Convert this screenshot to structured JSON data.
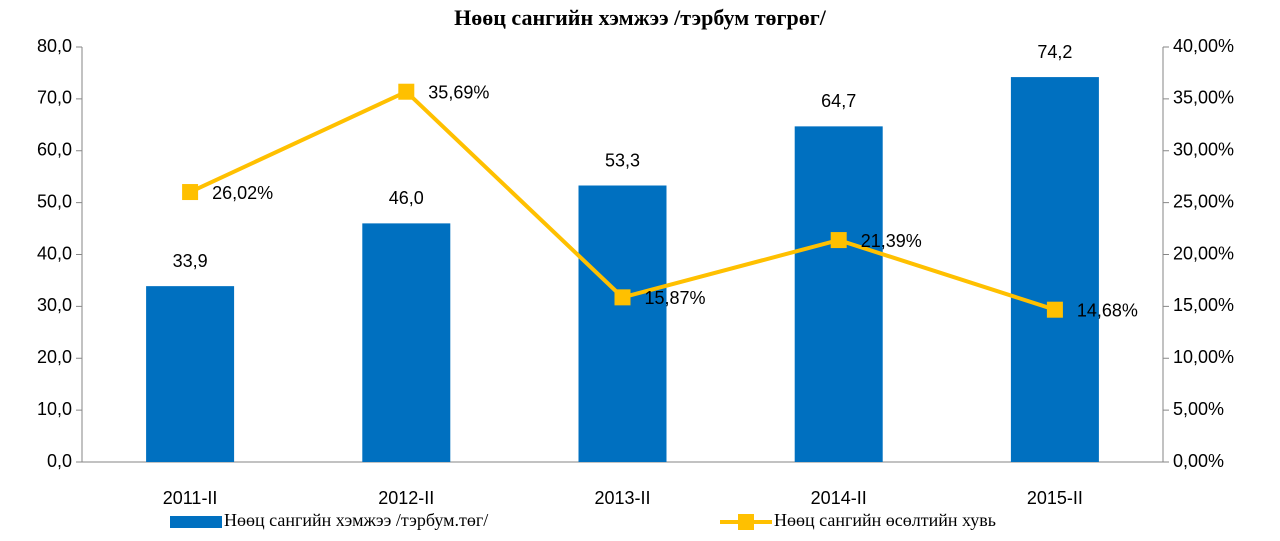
{
  "chart_data": {
    "type": "bar",
    "title": "Нөөц сангийн  хэмжээ /тэрбум төгрөг/",
    "categories": [
      "2011-II",
      "2012-II",
      "2013-II",
      "2014-II",
      "2015-II"
    ],
    "series": [
      {
        "name": "Нөөц сангийн хэмжээ /тэрбум.төг/",
        "type": "bar",
        "color": "#0070c0",
        "values": [
          33.9,
          46.0,
          53.3,
          64.7,
          74.2
        ],
        "value_labels": [
          "33,9",
          "46,0",
          "53,3",
          "64,7",
          "74,2"
        ]
      },
      {
        "name": "Нөөц сангийн өсөлтийн хувь",
        "type": "line",
        "axis": "y2",
        "color": "#ffc000",
        "values": [
          26.02,
          35.69,
          15.87,
          21.39,
          14.68
        ],
        "value_labels": [
          "26,02%",
          "35,69%",
          "15,87%",
          "21,39%",
          "14,68%"
        ]
      }
    ],
    "ylim": [
      0,
      80
    ],
    "yticks": [
      {
        "value": 0,
        "label": "0,0"
      },
      {
        "value": 10,
        "label": "10,0"
      },
      {
        "value": 20,
        "label": "20,0"
      },
      {
        "value": 30,
        "label": "30,0"
      },
      {
        "value": 40,
        "label": "40,0"
      },
      {
        "value": 50,
        "label": "50,0"
      },
      {
        "value": 60,
        "label": "60,0"
      },
      {
        "value": 70,
        "label": "70,0"
      },
      {
        "value": 80,
        "label": "80,0"
      }
    ],
    "y2lim": [
      0,
      40
    ],
    "y2ticks": [
      {
        "value": 0,
        "label": "0,00%"
      },
      {
        "value": 5,
        "label": "5,00%"
      },
      {
        "value": 10,
        "label": "10,00%"
      },
      {
        "value": 15,
        "label": "15,00%"
      },
      {
        "value": 20,
        "label": "20,00%"
      },
      {
        "value": 25,
        "label": "25,00%"
      },
      {
        "value": 30,
        "label": "30,00%"
      },
      {
        "value": 35,
        "label": "35,00%"
      },
      {
        "value": 40,
        "label": "40,00%"
      }
    ],
    "legend": "bottom"
  }
}
